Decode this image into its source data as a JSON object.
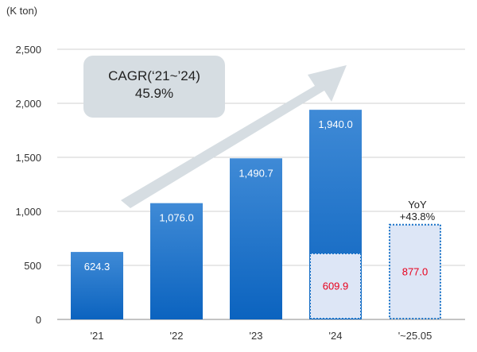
{
  "unit_label": "(K ton)",
  "cagr": {
    "line1": "CAGR(‘21~’24)",
    "line2": "45.9%"
  },
  "yoy": {
    "line1": "YoY",
    "line2": "+43.8%"
  },
  "colors": {
    "bar_top": "#3f8ad6",
    "bar_bottom": "#0b63bf",
    "partial_fill": "#dde6f6",
    "partial_border": "#1a73c8",
    "partial_text": "#e8001c",
    "arrow": "#d6dde2",
    "grid": "#d0d0d0"
  },
  "chart_data": {
    "type": "bar",
    "categories": [
      "'21",
      "'22",
      "'23",
      "'24",
      "'~25.05"
    ],
    "values": [
      624.3,
      1076.0,
      1490.7,
      1940.0,
      null
    ],
    "labels": [
      "624.3",
      "1,076.0",
      "1,490.7",
      "1,940.0",
      ""
    ],
    "partial_values": [
      null,
      null,
      null,
      609.9,
      877.0
    ],
    "partial_labels": [
      "",
      "",
      "",
      "609.9",
      "877.0"
    ],
    "ylim": [
      0,
      2500
    ],
    "yticks": [
      0,
      500,
      1000,
      1500,
      2000,
      2500
    ],
    "ytick_labels": [
      "0",
      "500",
      "1,000",
      "1,500",
      "2,000",
      "2,500"
    ],
    "ylabel": "(K ton)",
    "grid": true,
    "annotations": [
      "CAGR(‘21~’24) 45.9%",
      "YoY +43.8%"
    ]
  }
}
